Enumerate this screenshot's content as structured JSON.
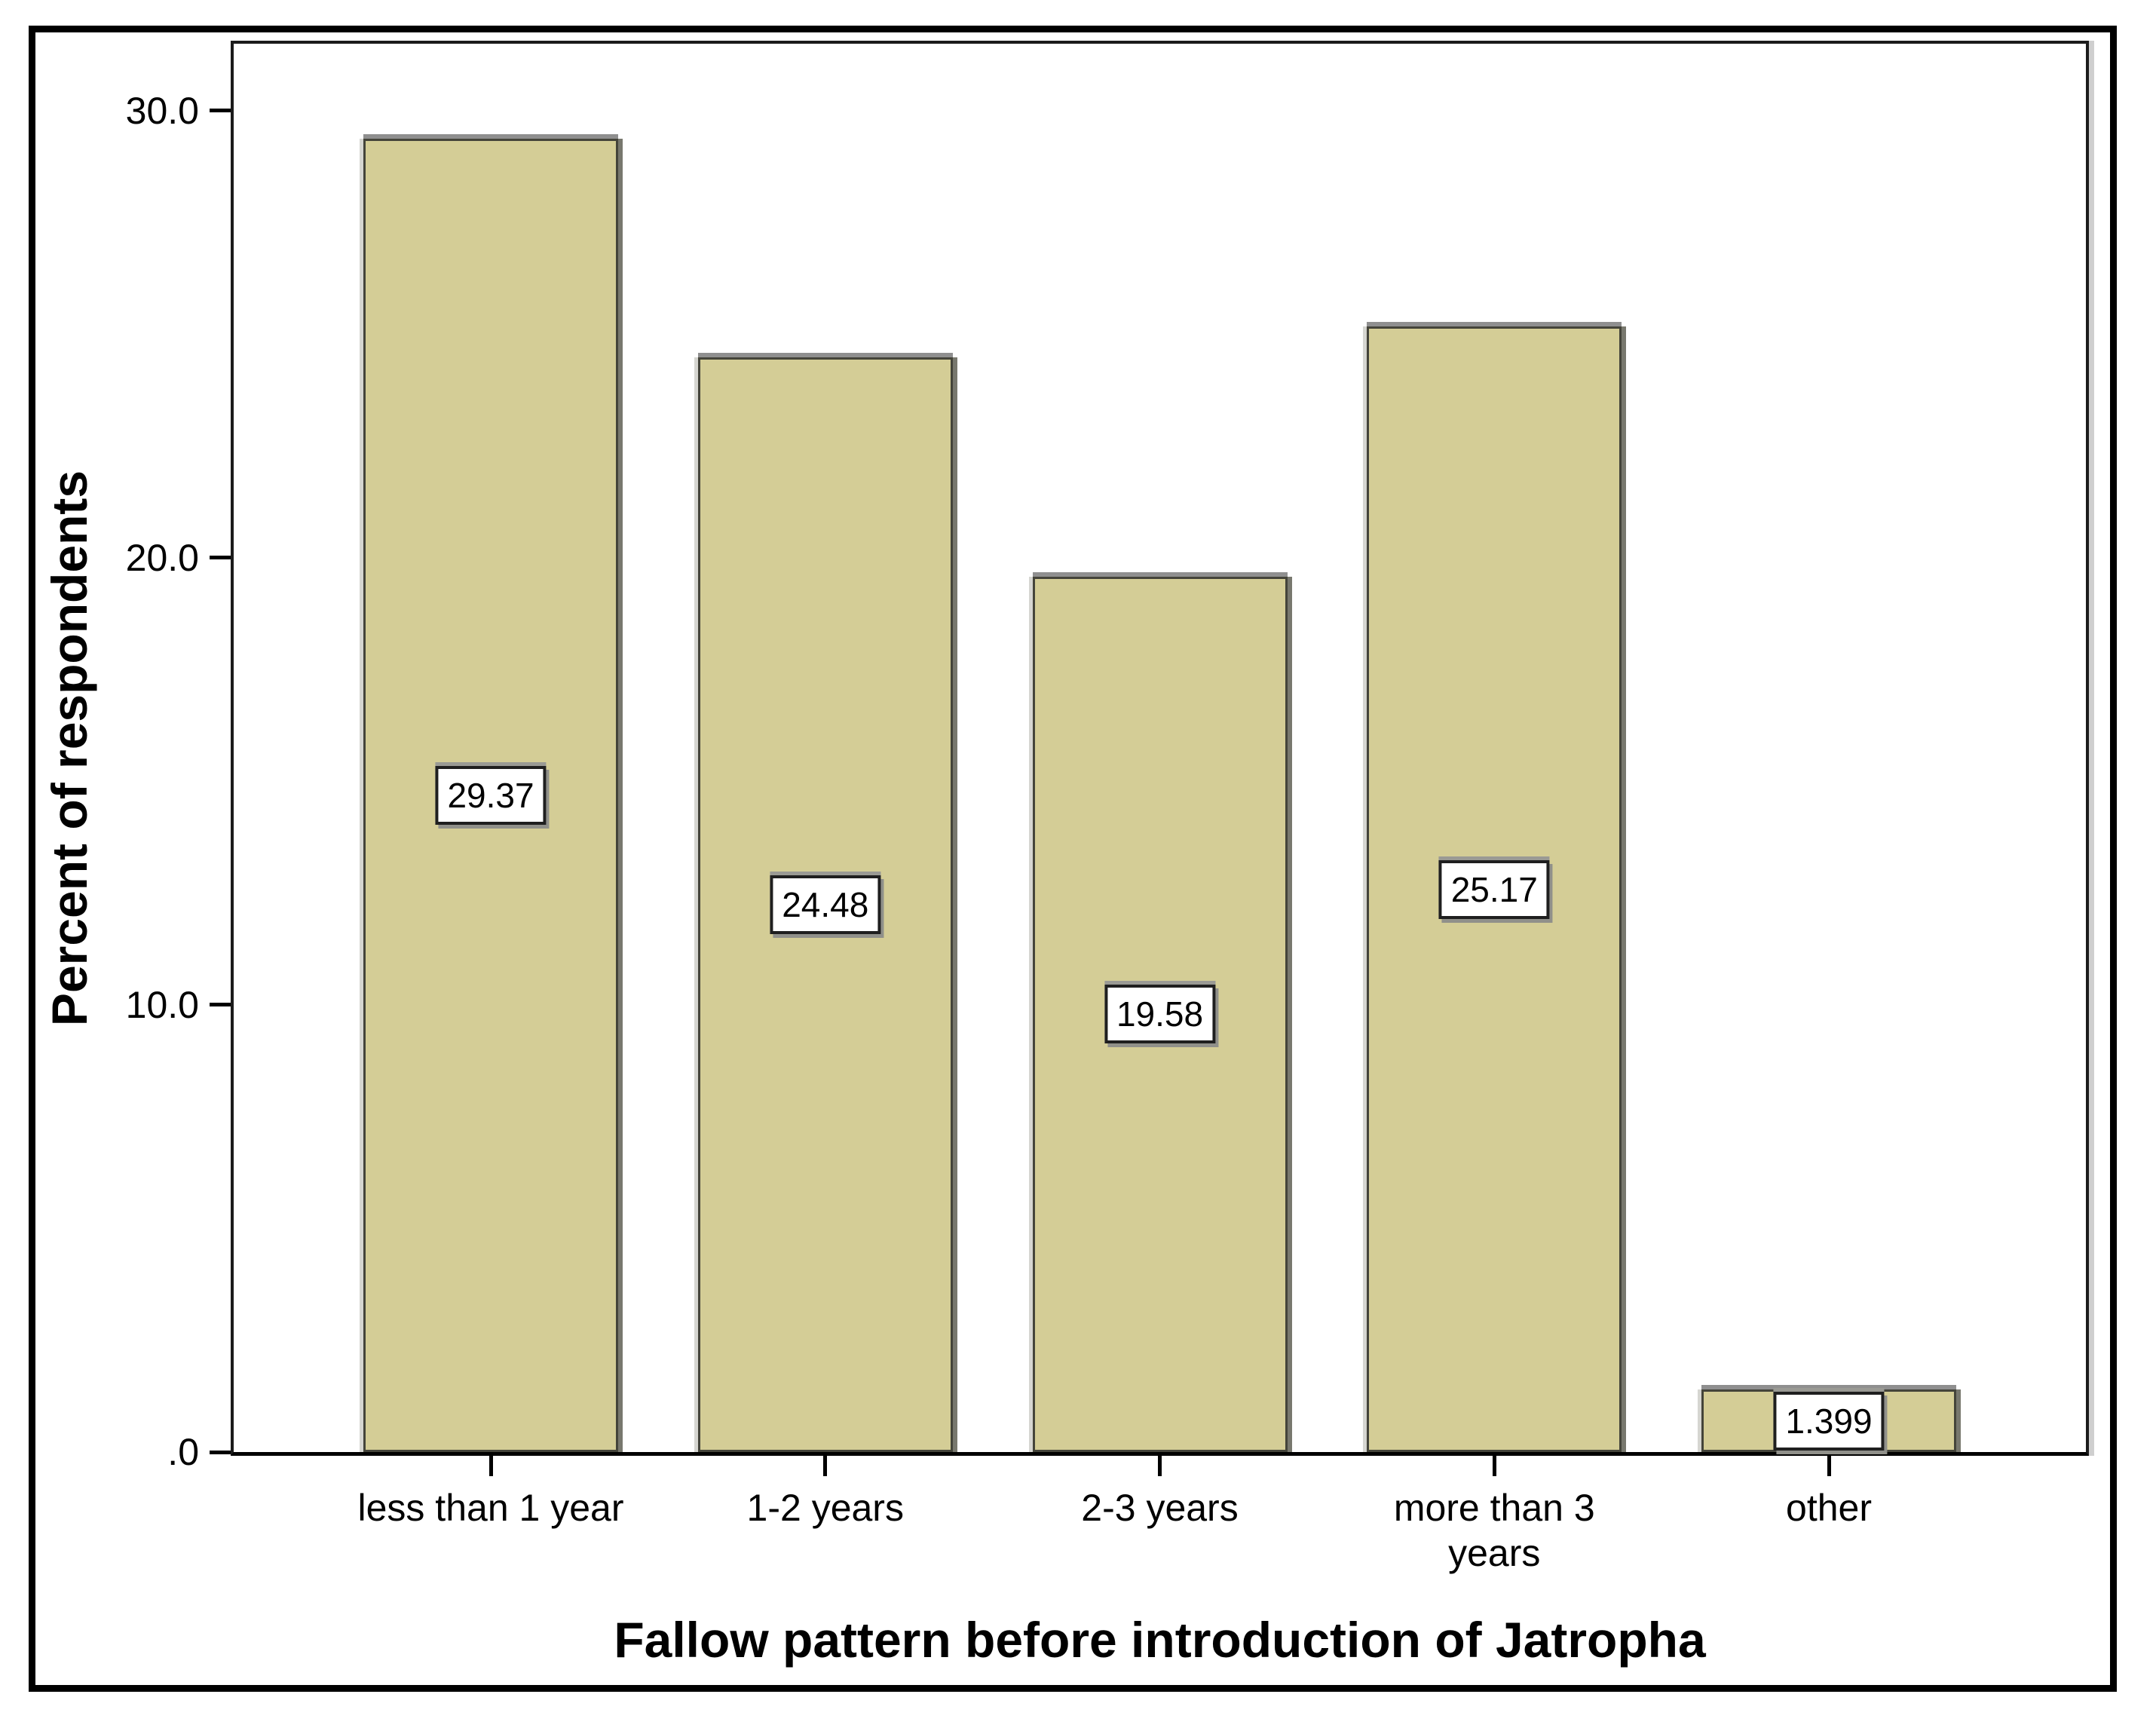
{
  "chart_data": {
    "type": "bar",
    "title": "",
    "xlabel": "Fallow pattern before introduction of Jatropha",
    "ylabel": "Percent of respondents",
    "categories": [
      "less than 1 year",
      "1-2 years",
      "2-3 years",
      "more than 3 years",
      "other"
    ],
    "values": [
      29.37,
      24.48,
      19.58,
      25.17,
      1.399
    ],
    "value_labels": [
      "29.37",
      "24.48",
      "19.58",
      "25.17",
      "1.399"
    ],
    "yticks": [
      {
        "value": 0,
        "label": ".0"
      },
      {
        "value": 10,
        "label": "10.0"
      },
      {
        "value": 20,
        "label": "20.0"
      },
      {
        "value": 30,
        "label": "30.0"
      }
    ],
    "ylim": [
      0,
      31.5
    ],
    "grid": false,
    "legend": false,
    "layout_hints": {
      "value_label_position": "middle-of-bar-in-white-box",
      "axis_frame": "full black frame around plot"
    },
    "colors": {
      "bar_fill": "#d4cd96",
      "bar_border": "#44443a",
      "bevel_gray": "#8f8f8f",
      "frame": "#1b1b1b",
      "label_box_bg": "#ffffff",
      "label_box_border": "#1f1f1f",
      "text": "#000000",
      "background": "#ffffff"
    }
  }
}
